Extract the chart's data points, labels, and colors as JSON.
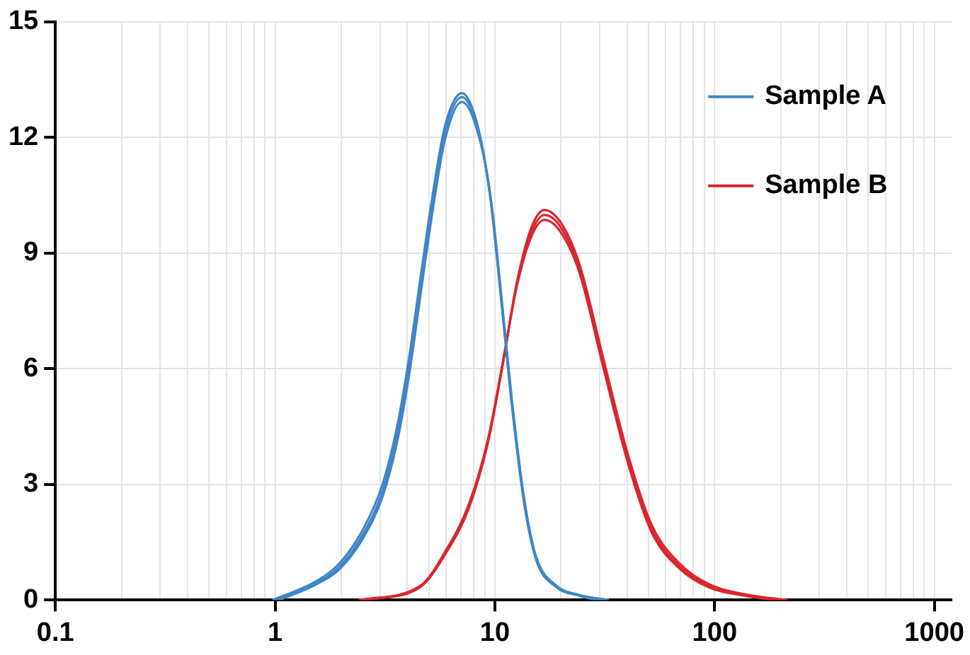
{
  "chart_data": {
    "type": "line",
    "log": "x",
    "grid": true,
    "legend": "top right",
    "marker": "none",
    "line_style": "solid",
    "xlim": [
      0.1,
      1200
    ],
    "ylim": [
      0,
      15
    ],
    "yticks": [
      0,
      3,
      6,
      9,
      12,
      15
    ],
    "xticks": [
      0.1,
      {
        "value": 0.2,
        "label": null
      },
      {
        "value": 0.3,
        "label": null
      },
      {
        "value": 0.4,
        "label": null
      },
      {
        "value": 0.5,
        "label": null
      },
      {
        "value": 0.6,
        "label": null
      },
      {
        "value": 0.7,
        "label": null
      },
      {
        "value": 0.8,
        "label": null
      },
      {
        "value": 0.9,
        "label": null
      },
      1,
      {
        "value": 2,
        "label": null
      },
      {
        "value": 3,
        "label": null
      },
      {
        "value": 4,
        "label": null
      },
      {
        "value": 5,
        "label": null
      },
      {
        "value": 6,
        "label": null
      },
      {
        "value": 7,
        "label": null
      },
      {
        "value": 8,
        "label": null
      },
      {
        "value": 9,
        "label": null
      },
      10,
      {
        "value": 20,
        "label": null
      },
      {
        "value": 30,
        "label": null
      },
      {
        "value": 40,
        "label": null
      },
      {
        "value": 50,
        "label": null
      },
      {
        "value": 60,
        "label": null
      },
      {
        "value": 70,
        "label": null
      },
      {
        "value": 80,
        "label": null
      },
      {
        "value": 90,
        "label": null
      },
      100,
      {
        "value": 200,
        "label": null
      },
      {
        "value": 300,
        "label": null
      },
      {
        "value": 400,
        "label": null
      },
      {
        "value": 500,
        "label": null
      },
      {
        "value": 600,
        "label": null
      },
      {
        "value": 700,
        "label": null
      },
      {
        "value": 800,
        "label": null
      },
      {
        "value": 900,
        "label": null
      },
      1000
    ],
    "series": [
      {
        "name": "Sample A",
        "color": "#3f86c6",
        "x": [
          1,
          1.53,
          1.96,
          2.52,
          3.08,
          3.59,
          4.06,
          4.61,
          5.24,
          5.93,
          7.08,
          8.44,
          9.57,
          10.85,
          12.0,
          13.6,
          15.4,
          18.9,
          24.3,
          31
        ],
        "values": [
          0,
          0.43,
          0.86,
          1.72,
          2.82,
          4.29,
          6.0,
          8.21,
          10.4,
          12.13,
          13.05,
          12.13,
          10.4,
          7.47,
          5.03,
          2.57,
          1.1,
          0.37,
          0.12,
          0
        ]
      },
      {
        "color": "#3f86c6",
        "x": [
          0.97,
          1.53,
          1.96,
          2.52,
          3.08,
          3.59,
          4.06,
          4.61,
          5.24,
          5.93,
          7.08,
          8.44,
          9.57,
          10.85,
          12.0,
          13.6,
          15.4,
          18.9,
          24.3,
          29
        ],
        "values": [
          0,
          0.48,
          0.95,
          1.85,
          3.0,
          4.5,
          6.25,
          8.45,
          10.6,
          12.3,
          13.15,
          12.2,
          10.35,
          7.4,
          4.95,
          2.5,
          1.05,
          0.35,
          0.11,
          0
        ]
      },
      {
        "color": "#3f86c6",
        "x": [
          1.04,
          1.53,
          1.96,
          2.52,
          3.08,
          3.59,
          4.06,
          4.61,
          5.24,
          5.93,
          7.08,
          8.44,
          9.57,
          10.85,
          12.0,
          13.6,
          15.4,
          18.9,
          24.3,
          33
        ],
        "values": [
          0,
          0.4,
          0.8,
          1.62,
          2.68,
          4.1,
          5.8,
          8.0,
          10.2,
          11.95,
          12.92,
          12.05,
          10.45,
          7.55,
          5.1,
          2.62,
          1.13,
          0.39,
          0.13,
          0
        ]
      },
      {
        "name": "Sample B",
        "color": "#d9262e",
        "x": [
          2.5,
          4.6,
          5.93,
          7.63,
          9.33,
          10.85,
          12.6,
          14.7,
          16.8,
          19.9,
          24.3,
          31.2,
          40.2,
          51.7,
          69.8,
          94.4,
          141,
          200
        ],
        "values": [
          0,
          0.37,
          1.22,
          2.45,
          4.17,
          6.13,
          8.21,
          9.56,
          9.99,
          9.68,
          8.58,
          6.13,
          3.68,
          1.84,
          0.86,
          0.37,
          0.12,
          0
        ]
      },
      {
        "color": "#d9262e",
        "x": [
          2.6,
          4.6,
          5.93,
          7.63,
          9.33,
          10.85,
          12.6,
          14.7,
          16.8,
          19.9,
          24.3,
          31.2,
          40.2,
          51.7,
          69.8,
          94.4,
          141,
          215
        ],
        "values": [
          0,
          0.35,
          1.18,
          2.4,
          4.12,
          6.1,
          8.25,
          9.68,
          10.12,
          9.8,
          8.7,
          6.25,
          3.8,
          1.95,
          0.93,
          0.41,
          0.14,
          0
        ]
      },
      {
        "color": "#d9262e",
        "x": [
          2.4,
          4.6,
          5.93,
          7.63,
          9.33,
          10.85,
          12.6,
          14.7,
          16.8,
          19.9,
          24.3,
          31.2,
          40.2,
          51.7,
          69.8,
          94.4,
          141,
          185
        ],
        "values": [
          0,
          0.38,
          1.25,
          2.5,
          4.2,
          6.15,
          8.15,
          9.45,
          9.86,
          9.55,
          8.48,
          6.02,
          3.58,
          1.76,
          0.8,
          0.33,
          0.1,
          0
        ]
      }
    ]
  }
}
